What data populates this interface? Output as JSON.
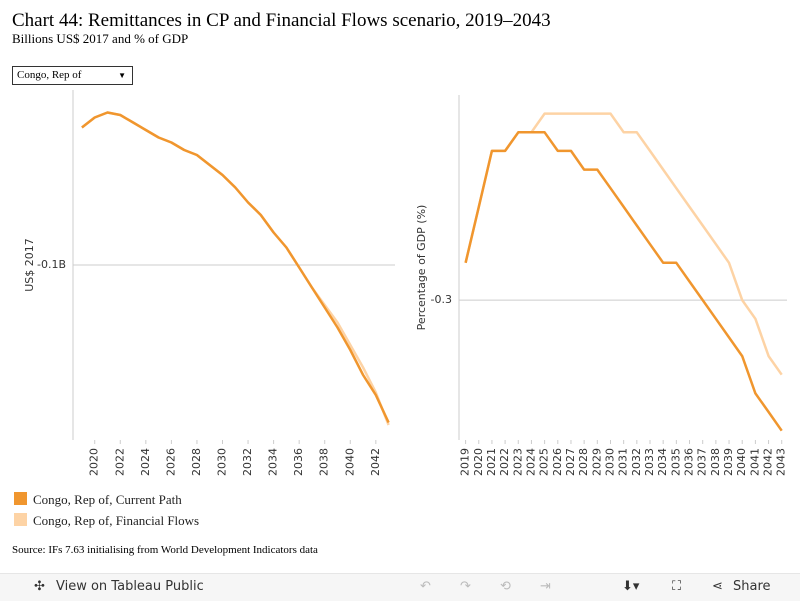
{
  "header": {
    "title": "Chart 44: Remittances in CP and Financial Flows scenario, 2019–2043",
    "subtitle": "Billions US$ 2017 and % of GDP"
  },
  "filter": "Congo, Rep of",
  "chart_data": [
    {
      "type": "line",
      "y_label": "US$ 2017",
      "x": [
        2019,
        2020,
        2021,
        2022,
        2023,
        2024,
        2025,
        2026,
        2027,
        2028,
        2029,
        2030,
        2031,
        2032,
        2033,
        2034,
        2035,
        2036,
        2037,
        2038,
        2039,
        2040,
        2041,
        2042,
        2043
      ],
      "xlim": [
        2018.3,
        2043.5
      ],
      "xticks": [
        2020,
        2022,
        2024,
        2026,
        2028,
        2030,
        2032,
        2034,
        2036,
        2038,
        2040,
        2042
      ],
      "ylim": [
        -0.17,
        -0.03
      ],
      "yticks": [
        {
          "value": -0.1,
          "label": "-0.1B"
        }
      ],
      "series": [
        {
          "name": "Congo, Rep of, Current Path",
          "color": "#f0962e",
          "values": [
            -0.045,
            -0.041,
            -0.039,
            -0.04,
            -0.043,
            -0.046,
            -0.049,
            -0.051,
            -0.054,
            -0.056,
            -0.06,
            -0.064,
            -0.069,
            -0.075,
            -0.08,
            -0.087,
            -0.093,
            -0.101,
            -0.109,
            -0.117,
            -0.125,
            -0.134,
            -0.144,
            -0.152,
            -0.163
          ]
        },
        {
          "name": "Congo, Rep of, Financial Flows",
          "color": "#fdd3a5",
          "values": [
            -0.045,
            -0.041,
            -0.039,
            -0.04,
            -0.043,
            -0.046,
            -0.049,
            -0.051,
            -0.054,
            -0.056,
            -0.06,
            -0.064,
            -0.069,
            -0.075,
            -0.08,
            -0.087,
            -0.093,
            -0.101,
            -0.109,
            -0.116,
            -0.123,
            -0.132,
            -0.141,
            -0.151,
            -0.164
          ]
        }
      ]
    },
    {
      "type": "line",
      "y_label": "Percentage of GDP (%)",
      "x": [
        2019,
        2020,
        2021,
        2022,
        2023,
        2024,
        2025,
        2026,
        2027,
        2028,
        2029,
        2030,
        2031,
        2032,
        2033,
        2034,
        2035,
        2036,
        2037,
        2038,
        2039,
        2040,
        2041,
        2042,
        2043
      ],
      "xlim": [
        2018.5,
        2043.4
      ],
      "xticks": [
        2019,
        2020,
        2021,
        2022,
        2023,
        2024,
        2025,
        2026,
        2027,
        2028,
        2029,
        2030,
        2031,
        2032,
        2033,
        2034,
        2035,
        2036,
        2037,
        2038,
        2039,
        2040,
        2041,
        2042,
        2043
      ],
      "ylim": [
        -0.375,
        -0.19
      ],
      "yticks": [
        -0.3
      ],
      "series": [
        {
          "name": "Congo, Rep of, Current Path",
          "color": "#f0962e",
          "values": [
            -0.28,
            -0.25,
            -0.22,
            -0.22,
            -0.21,
            -0.21,
            -0.21,
            -0.22,
            -0.22,
            -0.23,
            -0.23,
            -0.24,
            -0.25,
            -0.26,
            -0.27,
            -0.28,
            -0.28,
            -0.29,
            -0.3,
            -0.31,
            -0.32,
            -0.33,
            -0.35,
            -0.36,
            -0.37
          ]
        },
        {
          "name": "Congo, Rep of, Financial Flows",
          "color": "#fdd3a5",
          "values": [
            -0.28,
            -0.25,
            -0.22,
            -0.22,
            -0.21,
            -0.21,
            -0.2,
            -0.2,
            -0.2,
            -0.2,
            -0.2,
            -0.2,
            -0.21,
            -0.21,
            -0.22,
            -0.23,
            -0.24,
            -0.25,
            -0.26,
            -0.27,
            -0.28,
            -0.3,
            -0.31,
            -0.33,
            -0.34
          ]
        }
      ]
    }
  ],
  "source": "Source: IFs 7.63 initialising from World Development Indicators data",
  "toolbar": {
    "view": "View on Tableau Public",
    "share": "Share"
  }
}
